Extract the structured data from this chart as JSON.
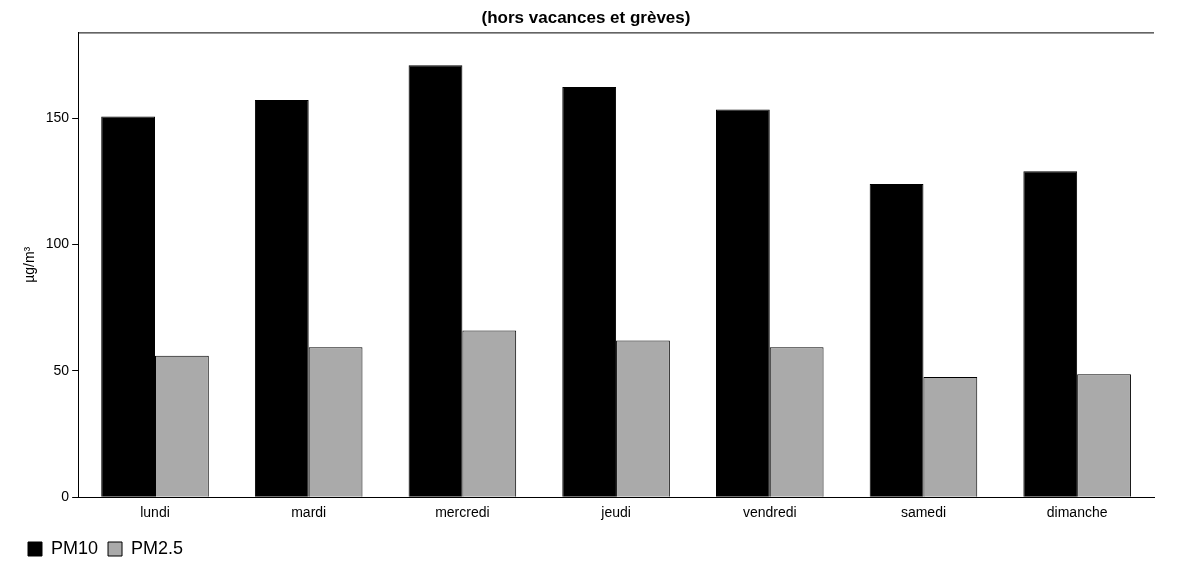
{
  "chart_data": {
    "type": "bar",
    "title": "(hors vacances et grèves)",
    "ylabel": "µg/m³",
    "categories": [
      "lundi",
      "mardi",
      "mercredi",
      "jeudi",
      "vendredi",
      "samedi",
      "dimanche"
    ],
    "series": [
      {
        "name": "PM10",
        "color": "#000000",
        "values": [
          150.7,
          157.2,
          171,
          162.4,
          153.5,
          124,
          129
        ]
      },
      {
        "name": "PM2.5",
        "color": "#aaaaaa",
        "values": [
          56,
          59.4,
          66,
          62,
          59.4,
          47.6,
          48.7
        ]
      }
    ],
    "ylim": [
      0,
      184
    ],
    "yticks": [
      0,
      50,
      100,
      150
    ],
    "grid": false,
    "legend": "bottom left"
  }
}
